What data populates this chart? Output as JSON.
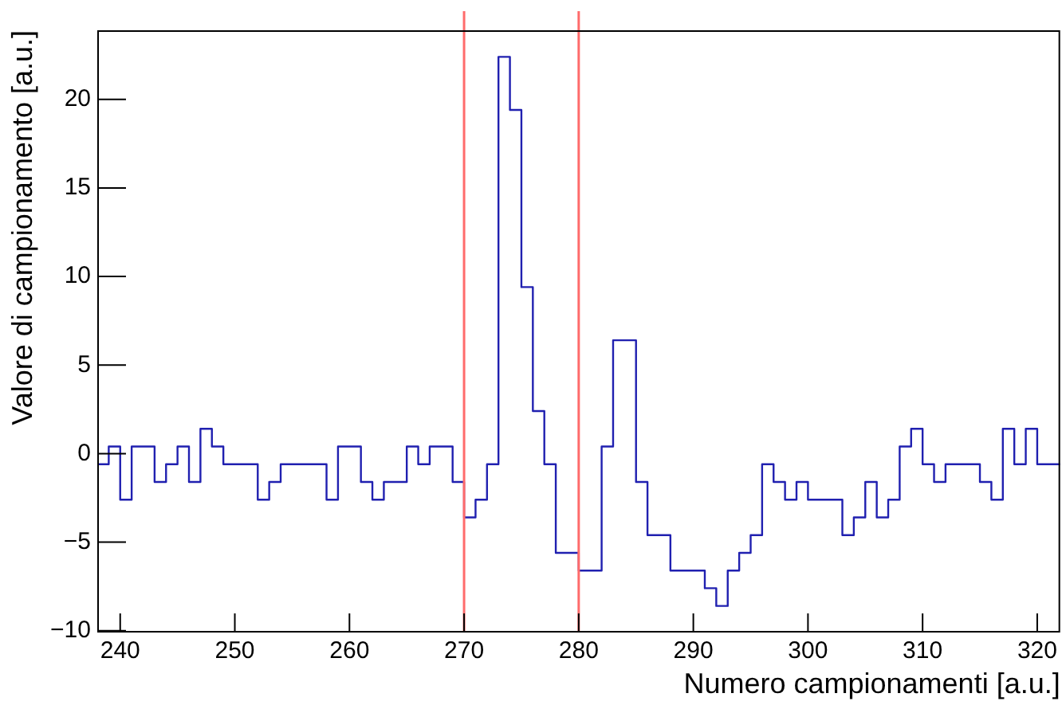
{
  "chart_data": {
    "type": "histogram",
    "xlabel": "Numero campionamenti [a.u.]",
    "ylabel": "Valore di campionamento [a.u.]",
    "bins": [
      238,
      239,
      240,
      241,
      242,
      243,
      244,
      245,
      246,
      247,
      248,
      249,
      250,
      251,
      252,
      253,
      254,
      255,
      256,
      257,
      258,
      259,
      260,
      261,
      262,
      263,
      264,
      265,
      266,
      267,
      268,
      269,
      270,
      271,
      272,
      273,
      274,
      275,
      276,
      277,
      278,
      279,
      280,
      281,
      282,
      283,
      284,
      285,
      286,
      287,
      288,
      289,
      290,
      291,
      292,
      293,
      294,
      295,
      296,
      297,
      298,
      299,
      300,
      301,
      302,
      303,
      304,
      305,
      306,
      307,
      308,
      309,
      310,
      311,
      312,
      313,
      314,
      315,
      316,
      317,
      318,
      319,
      320,
      321,
      322
    ],
    "values": [
      -0.6,
      0.4,
      -2.6,
      0.4,
      0.4,
      -1.6,
      -0.6,
      0.4,
      -1.6,
      1.4,
      0.4,
      -0.6,
      -0.6,
      -0.6,
      -2.6,
      -1.6,
      -0.6,
      -0.6,
      -0.6,
      -0.6,
      -2.6,
      0.4,
      0.4,
      -1.6,
      -2.6,
      -1.6,
      -1.6,
      0.4,
      -0.6,
      0.4,
      0.4,
      -1.6,
      -3.6,
      -2.6,
      -0.6,
      22.4,
      19.4,
      9.4,
      2.4,
      -0.6,
      -5.6,
      -5.6,
      -6.6,
      -6.6,
      0.4,
      6.4,
      6.4,
      -1.6,
      -4.6,
      -4.6,
      -6.6,
      -6.6,
      -6.6,
      -7.6,
      -8.6,
      -6.6,
      -5.6,
      -4.6,
      -0.6,
      -1.6,
      -2.6,
      -1.6,
      -2.6,
      -2.6,
      -2.6,
      -4.6,
      -3.6,
      -1.6,
      -3.6,
      -2.6,
      0.4,
      1.4,
      -0.6,
      -1.6,
      -0.6,
      -0.6,
      -0.6,
      -1.6,
      -2.6,
      1.4,
      -0.6,
      1.4,
      -0.6,
      -0.6
    ],
    "color": "#2020b0",
    "xlim": [
      238,
      322
    ],
    "xticks": [
      240,
      250,
      260,
      270,
      280,
      290,
      300,
      310,
      320
    ],
    "ylim": [
      -10.1,
      23.9
    ],
    "yticks": [
      -10,
      -5,
      0,
      5,
      10,
      15,
      20
    ],
    "ref_lines": [
      {
        "axis": "x",
        "value": 270,
        "color": "#ff6b6b"
      },
      {
        "axis": "x",
        "value": 280,
        "color": "#ff6b6b"
      }
    ],
    "grid": false,
    "legend": false
  }
}
